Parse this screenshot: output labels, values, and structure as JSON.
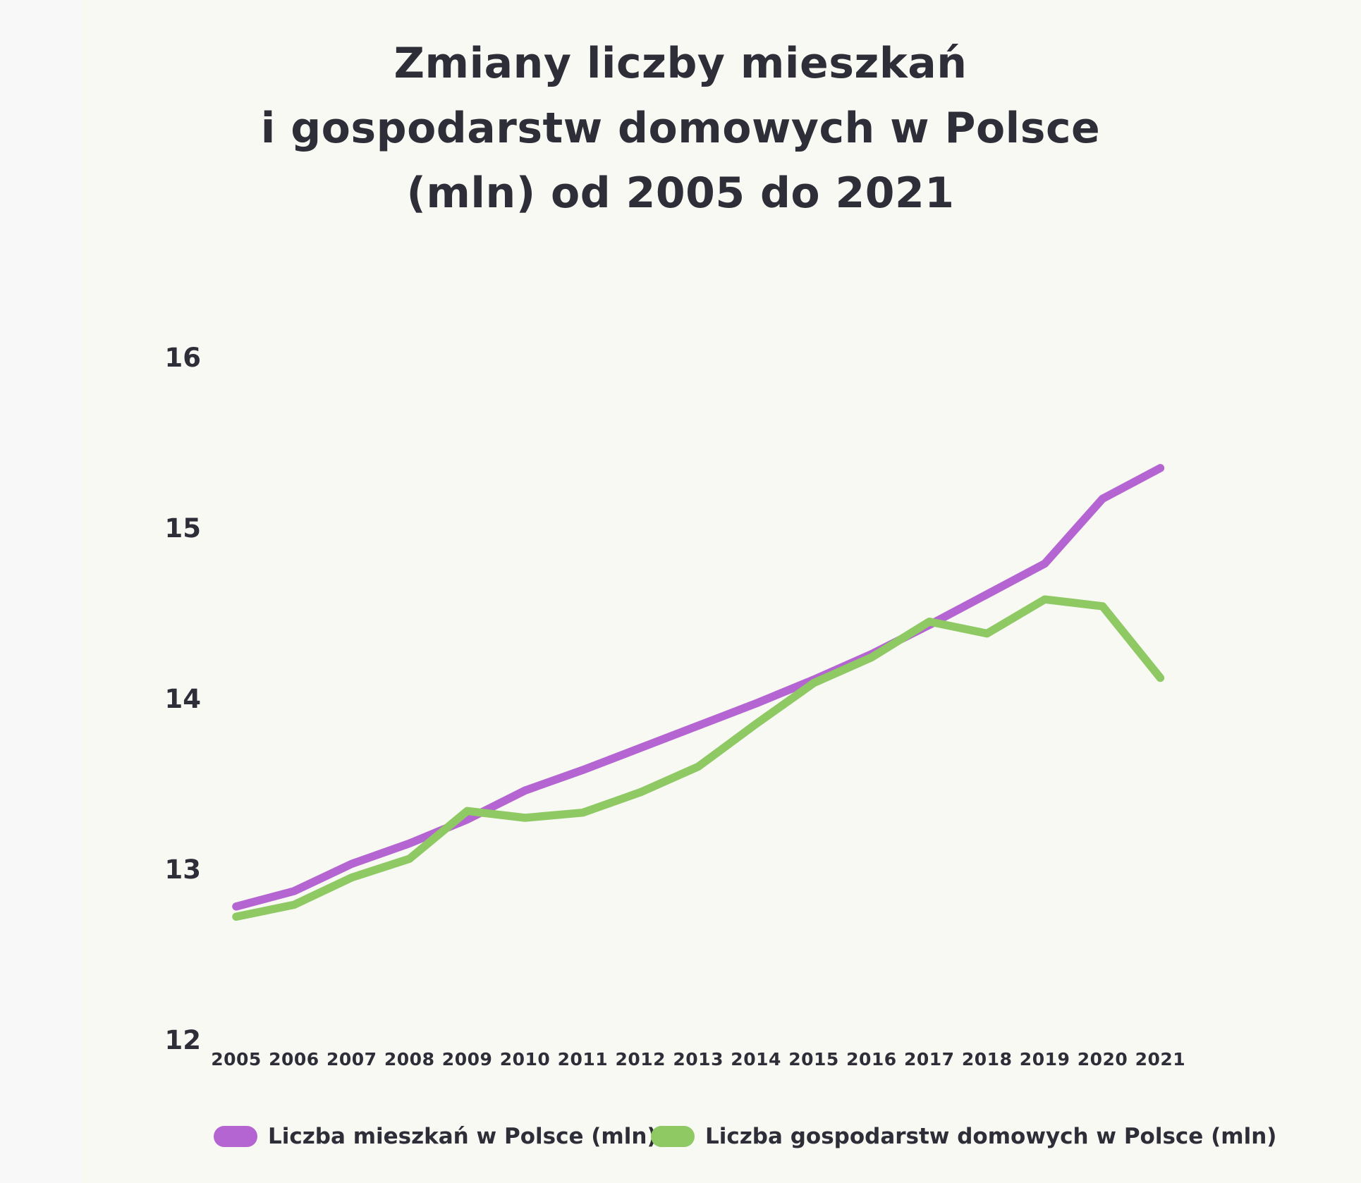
{
  "title": {
    "lines": [
      "Zmiany liczby mieszkań",
      "i gospodarstw domowych w Polsce",
      "(mln) od 2005 do 2021"
    ]
  },
  "colors": {
    "background": "#f9f9f4",
    "text": "#2e2e38",
    "mieszkania": "#b565d2",
    "gospodarstwa": "#8ec964"
  },
  "chart_data": {
    "type": "line",
    "title": "Zmiany liczby mieszkań i gospodarstw domowych w Polsce (mln) od 2005 do 2021",
    "x": [
      2005,
      2006,
      2007,
      2008,
      2009,
      2010,
      2011,
      2012,
      2013,
      2014,
      2015,
      2016,
      2017,
      2018,
      2019,
      2020,
      2021
    ],
    "series": [
      {
        "name": "Liczba mieszkań w Polsce (mln)",
        "color_key": "mieszkania",
        "values": [
          12.79,
          12.88,
          13.04,
          13.16,
          13.3,
          13.47,
          13.59,
          13.72,
          13.85,
          13.98,
          14.12,
          14.27,
          14.44,
          14.62,
          14.8,
          15.18,
          15.36
        ]
      },
      {
        "name": "Liczba gospodarstw domowych w Polsce (mln)",
        "color_key": "gospodarstwa",
        "values": [
          12.73,
          12.8,
          12.96,
          13.07,
          13.35,
          13.31,
          13.34,
          13.46,
          13.61,
          13.86,
          14.1,
          14.25,
          14.46,
          14.39,
          14.59,
          14.55,
          14.13
        ]
      }
    ],
    "xlabel": "",
    "ylabel": "",
    "ylim": [
      12,
      16
    ],
    "yticks": [
      12,
      13,
      14,
      15,
      16
    ],
    "grid": false,
    "legend_position": "bottom"
  },
  "legend": {
    "items": [
      {
        "label": "Liczba mieszkań w Polsce (mln)"
      },
      {
        "label": "Liczba gospodarstw domowych w Polsce (mln)"
      }
    ]
  }
}
